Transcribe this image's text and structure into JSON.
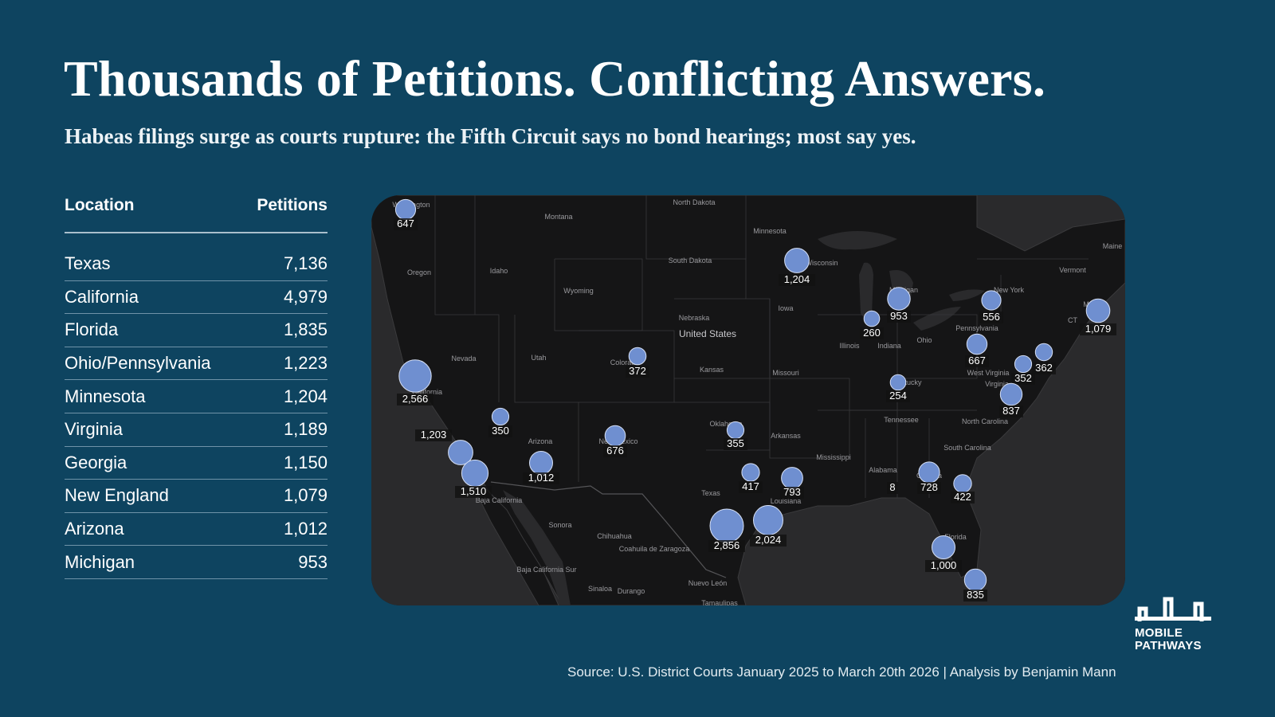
{
  "header": {
    "title": "Thousands of Petitions. Conflicting Answers.",
    "subtitle": "Habeas filings surge as courts rupture: the Fifth Circuit says no bond hearings; most say yes."
  },
  "table": {
    "col_location": "Location",
    "col_petitions": "Petitions",
    "rows": [
      {
        "location": "Texas",
        "petitions": "7,136"
      },
      {
        "location": "California",
        "petitions": "4,979"
      },
      {
        "location": "Florida",
        "petitions": "1,835"
      },
      {
        "location": "Ohio/Pennsylvania",
        "petitions": "1,223"
      },
      {
        "location": "Minnesota",
        "petitions": "1,204"
      },
      {
        "location": "Virginia",
        "petitions": "1,189"
      },
      {
        "location": "Georgia",
        "petitions": "1,150"
      },
      {
        "location": "New England",
        "petitions": "1,079"
      },
      {
        "location": "Arizona",
        "petitions": "1,012"
      },
      {
        "location": "Michigan",
        "petitions": "953"
      }
    ]
  },
  "map": {
    "bubble_color": "#6f8fd0",
    "bubbles": [
      {
        "label": "647",
        "value": 647
      },
      {
        "label": "1,204",
        "value": 1204
      },
      {
        "label": "953",
        "value": 953
      },
      {
        "label": "260",
        "value": 260
      },
      {
        "label": "556",
        "value": 556
      },
      {
        "label": "1,079",
        "value": 1079
      },
      {
        "label": "667",
        "value": 667
      },
      {
        "label": "362",
        "value": 362
      },
      {
        "label": "352",
        "value": 352
      },
      {
        "label": "837",
        "value": 837
      },
      {
        "label": "254",
        "value": 254
      },
      {
        "label": "372",
        "value": 372
      },
      {
        "label": "2,566",
        "value": 2566
      },
      {
        "label": "350",
        "value": 350
      },
      {
        "label": "1,203",
        "value": 1203
      },
      {
        "label": "1,510",
        "value": 1510
      },
      {
        "label": "1,012",
        "value": 1012
      },
      {
        "label": "676",
        "value": 676
      },
      {
        "label": "355",
        "value": 355
      },
      {
        "label": "417",
        "value": 417
      },
      {
        "label": "793",
        "value": 793
      },
      {
        "label": "2,856",
        "value": 2856
      },
      {
        "label": "2,024",
        "value": 2024
      },
      {
        "label": "728",
        "value": 728
      },
      {
        "label": "8",
        "value": 8
      },
      {
        "label": "422",
        "value": 422
      },
      {
        "label": "1,000",
        "value": 1000
      },
      {
        "label": "835",
        "value": 835
      }
    ],
    "place_labels": [
      "Washington",
      "Montana",
      "North Dakota",
      "Minnesota",
      "Oregon",
      "Idaho",
      "South Dakota",
      "Wyoming",
      "Wisconsin",
      "Michigan",
      "New York",
      "Vermont",
      "Iowa",
      "Nebraska",
      "United States",
      "Pennsylvania",
      "Ohio",
      "Illinois",
      "Indiana",
      "Nevada",
      "Utah",
      "Colorado",
      "Kansas",
      "Missouri",
      "Kentucky",
      "West Virginia",
      "Virginia",
      "California",
      "Tennessee",
      "North Carolina",
      "Arizona",
      "New Mexico",
      "Oklahoma",
      "Arkansas",
      "South Carolina",
      "Mississippi",
      "Alabama",
      "Georgia",
      "Texas",
      "Louisiana",
      "Baja California",
      "Sonora",
      "Chihuahua",
      "Coahuila de Zaragoza",
      "Florida",
      "Baja California Sur",
      "Sinaloa",
      "Durango",
      "Nuevo León",
      "Tamaulipas",
      "Maine",
      "MA",
      "CT"
    ]
  },
  "footer": {
    "source": "Source: U.S. District Courts January 2025 to March 20th 2026 | Analysis by Benjamin Mann",
    "logo_line1": "MOBILE",
    "logo_line2": "PATHWAYS"
  }
}
